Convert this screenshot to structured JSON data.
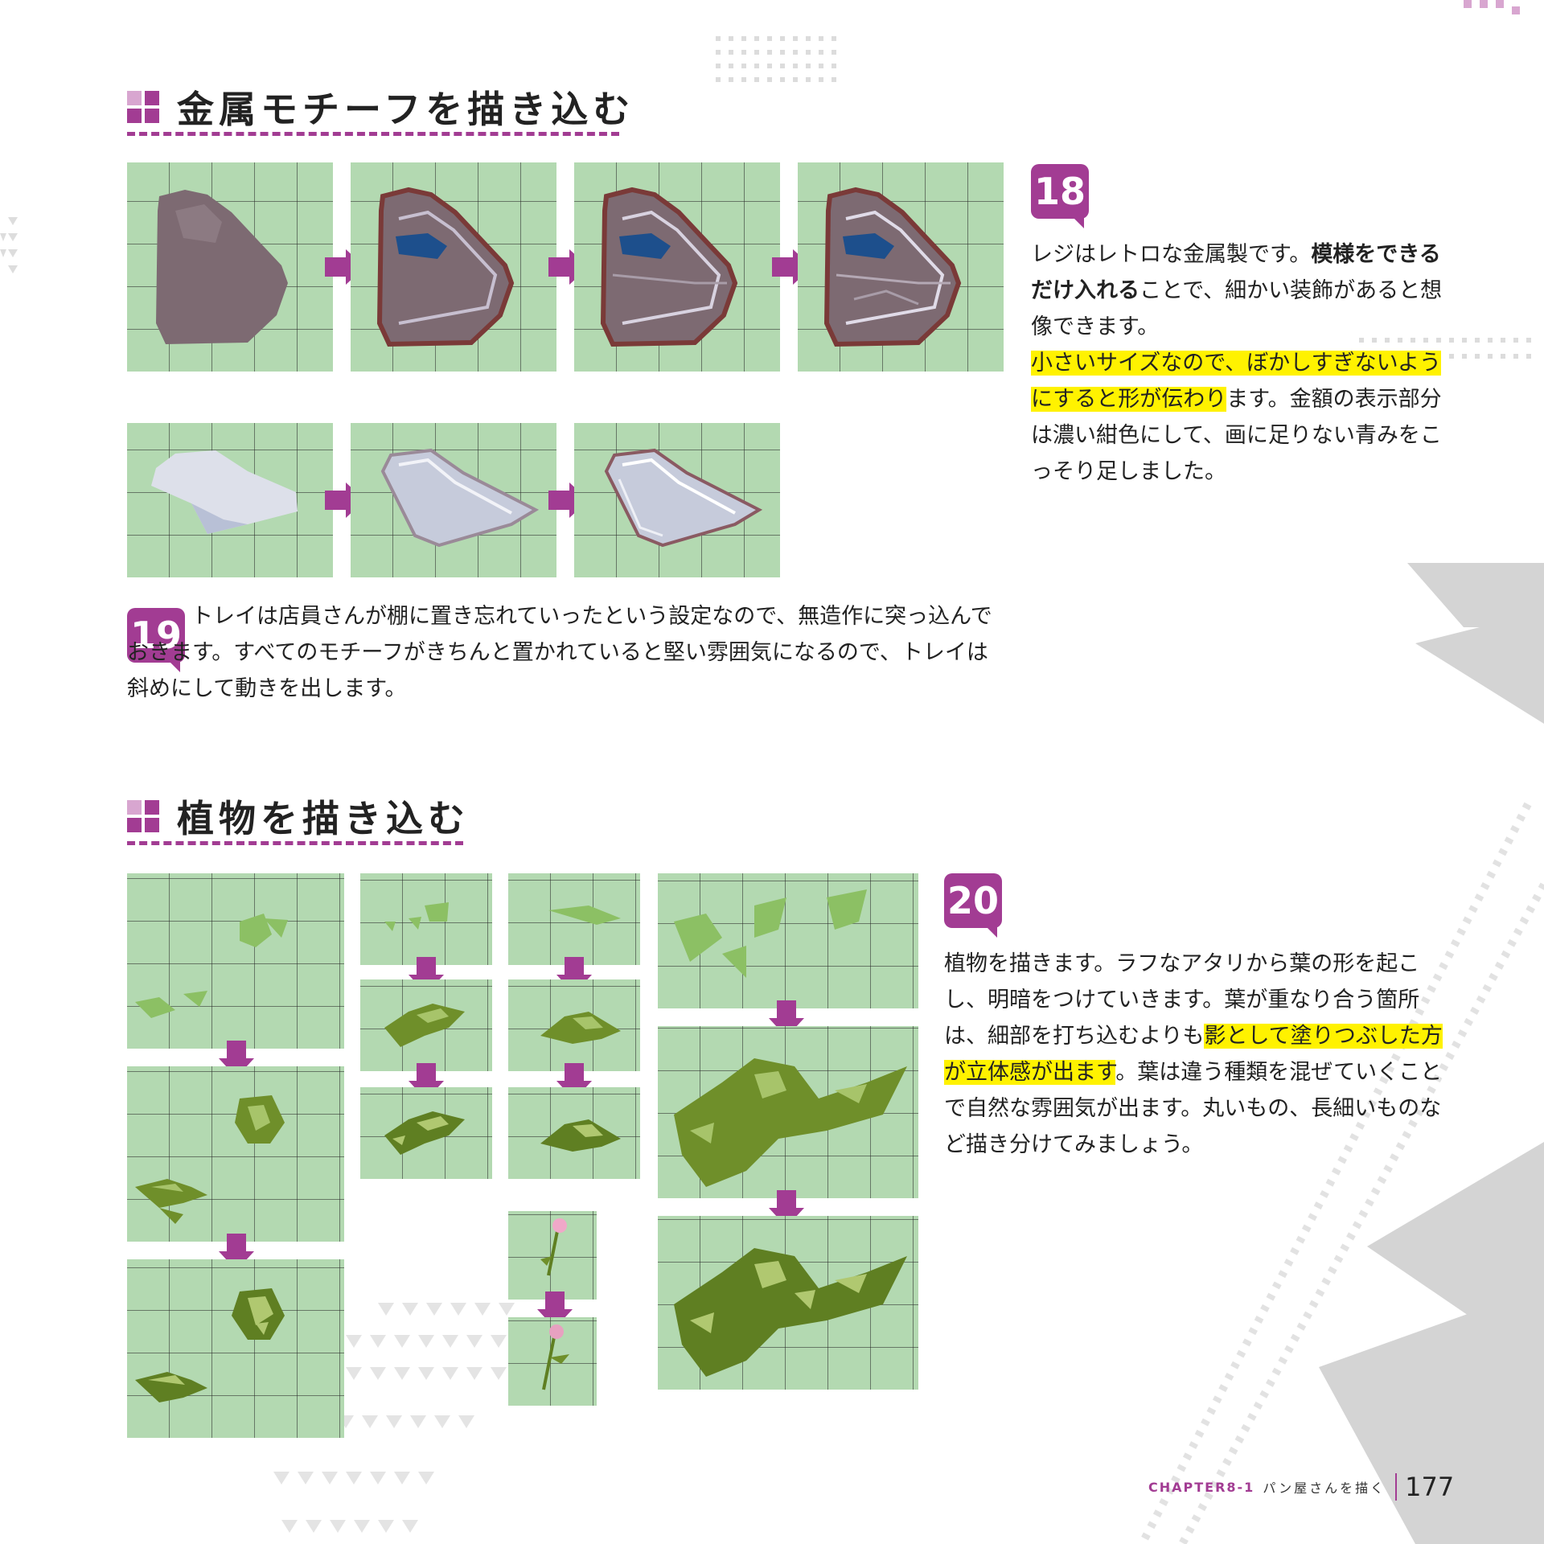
{
  "section1": {
    "title": "金属モチーフを描き込む"
  },
  "step18": {
    "number": "18",
    "t1": "レジはレトロな金属製です。",
    "t2": "模様をできるだけ入れる",
    "t3": "ことで、細かい装飾があると想像できます。",
    "t4": "小さいサイズなので、ぼかしすぎないようにすると形が伝わり",
    "t5": "ます。金額の表示部分は濃い紺色にして、画に足りない青みをこっそり足しました。"
  },
  "step19": {
    "number": "19",
    "text": "トレイは店員さんが棚に置き忘れていったという設定なので、無造作に突っ込んでおきます。すべてのモチーフがきちんと置かれていると堅い雰囲気になるので、トレイは斜めにして動きを出します。"
  },
  "section2": {
    "title": "植物を描き込む"
  },
  "step20": {
    "number": "20",
    "t1": "植物を描きます。ラフなアタリから葉の形を起こし、明暗をつけていきます。葉が重なり合う箇所は、細部を打ち込むよりも",
    "t2": "影として塗りつぶした方が立体感が出ます",
    "t3": "。葉は違う種類を混ぜていくことで自然な雰囲気が出ます。丸いもの、長細いものなど描き分けてみましょう。"
  },
  "footer": {
    "chapter": "CHAPTER8-1",
    "chapter_title": "パン屋さんを描く",
    "page_number": "177"
  },
  "colors": {
    "accent": "#a23c93",
    "panel_bg": "#b3d9b1",
    "highlight": "#fff200",
    "register_body": "#7d6a72",
    "register_outline": "#7a3a38",
    "display_blue": "#1d4f8c",
    "tray": "#dde0ea",
    "leaf_rough": "#8cc064",
    "leaf_shaded": "#6f8f2a"
  }
}
